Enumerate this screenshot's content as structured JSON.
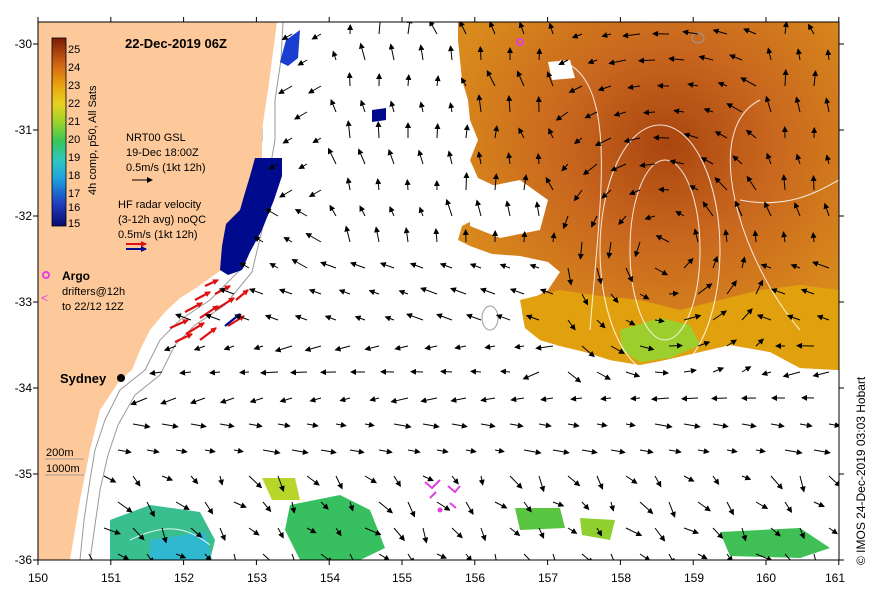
{
  "title": "22-Dec-2019 06Z",
  "credit": "© IMOS 24-Dec-2019 03:03 Hobart",
  "colorbar": {
    "label": "4h comp, p50, All Sats",
    "ticks": [
      "25",
      "24",
      "23",
      "22",
      "21",
      "20",
      "19",
      "18",
      "17",
      "16",
      "15"
    ]
  },
  "legend": {
    "nrt_lines": [
      "NRT00 GSL",
      "19-Dec 18:00Z",
      "0.5m/s (1kt 12h)"
    ],
    "hf_lines": [
      "HF radar velocity",
      "(3-12h avg) noQC",
      "0.5m/s (1kt 12h)"
    ],
    "argo": "Argo",
    "drifter_lines": [
      "drifters@12h",
      "to 22/12 12Z"
    ],
    "depth_200": "200m",
    "depth_1000": "1000m"
  },
  "city": "Sydney",
  "x_ticks": [
    "150",
    "151",
    "152",
    "153",
    "154",
    "155",
    "156",
    "157",
    "158",
    "159",
    "160",
    "161"
  ],
  "y_ticks": [
    "-30",
    "-31",
    "-32",
    "-33",
    "-34",
    "-35",
    "-36"
  ],
  "colors": {
    "land": "#fdc99a",
    "sst_warm": "#c8661e",
    "sst_mid": "#e1a10e",
    "sst_cool": "#7ccc3a",
    "hf_blue": "#000a8c",
    "hf_red": "#e01010",
    "argo": "#e040e0"
  }
}
